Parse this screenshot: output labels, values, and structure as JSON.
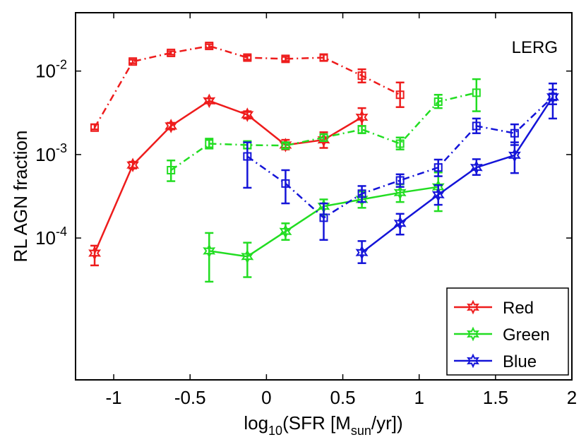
{
  "chart_data": {
    "type": "line",
    "annotation": "LERG",
    "ylabel": "RL AGN fraction",
    "xlabel": {
      "main": "log",
      "sub1": "10",
      "mid": "(SFR [M",
      "sub2": "sun",
      "end": "/yr])"
    },
    "xlim": [
      -1.25,
      2.0
    ],
    "ylim": [
      2e-06,
      0.05
    ],
    "yscale": "log",
    "grid": false,
    "legend_position": "bottom-right",
    "x_ticks": [
      {
        "value": -1,
        "label": "-1"
      },
      {
        "value": -0.5,
        "label": "-0.5"
      },
      {
        "value": 0,
        "label": "0"
      },
      {
        "value": 0.5,
        "label": "0.5"
      },
      {
        "value": 1,
        "label": "1"
      },
      {
        "value": 1.5,
        "label": "1.5"
      },
      {
        "value": 2,
        "label": "2"
      }
    ],
    "y_ticks": [
      {
        "value": 0.0001,
        "base": "10",
        "exp": "-4"
      },
      {
        "value": 0.001,
        "base": "10",
        "exp": "-3"
      },
      {
        "value": 0.01,
        "base": "10",
        "exp": "-2"
      }
    ],
    "series": [
      {
        "name": "Red",
        "color": "#ee1c1c",
        "marker": "star",
        "dash": "solid",
        "in_legend": true,
        "points": [
          {
            "x": -1.125,
            "y": 6.6e-05,
            "lo": 4.7e-05,
            "hi": 8.1e-05
          },
          {
            "x": -0.875,
            "y": 0.00075,
            "lo": 0.00068,
            "hi": 0.00082
          },
          {
            "x": -0.625,
            "y": 0.0022,
            "lo": 0.002,
            "hi": 0.0024
          },
          {
            "x": -0.375,
            "y": 0.0044,
            "lo": 0.0041,
            "hi": 0.0047
          },
          {
            "x": -0.125,
            "y": 0.003,
            "lo": 0.0027,
            "hi": 0.0033
          },
          {
            "x": 0.125,
            "y": 0.0013,
            "lo": 0.00115,
            "hi": 0.0015
          },
          {
            "x": 0.375,
            "y": 0.0015,
            "lo": 0.0012,
            "hi": 0.00185
          },
          {
            "x": 0.625,
            "y": 0.0028,
            "lo": 0.0022,
            "hi": 0.0036
          }
        ]
      },
      {
        "name": "",
        "color": "#ee1c1c",
        "marker": "square",
        "dash": "dashdot",
        "in_legend": false,
        "points": [
          {
            "x": -1.125,
            "y": 0.0021,
            "lo": 0.002,
            "hi": 0.0023
          },
          {
            "x": -0.875,
            "y": 0.013,
            "lo": 0.0124,
            "hi": 0.0137
          },
          {
            "x": -0.625,
            "y": 0.0165,
            "lo": 0.0157,
            "hi": 0.0173
          },
          {
            "x": -0.375,
            "y": 0.02,
            "lo": 0.019,
            "hi": 0.021
          },
          {
            "x": -0.125,
            "y": 0.0145,
            "lo": 0.0137,
            "hi": 0.0153
          },
          {
            "x": 0.125,
            "y": 0.014,
            "lo": 0.0132,
            "hi": 0.0148
          },
          {
            "x": 0.375,
            "y": 0.0145,
            "lo": 0.0133,
            "hi": 0.0157
          },
          {
            "x": 0.625,
            "y": 0.0088,
            "lo": 0.0073,
            "hi": 0.0105
          },
          {
            "x": 0.875,
            "y": 0.0052,
            "lo": 0.0037,
            "hi": 0.0073
          }
        ]
      },
      {
        "name": "Green",
        "color": "#22dd22",
        "marker": "star",
        "dash": "solid",
        "in_legend": true,
        "points": [
          {
            "x": -0.375,
            "y": 7e-05,
            "lo": 3e-05,
            "hi": 0.000115
          },
          {
            "x": -0.125,
            "y": 6e-05,
            "lo": 3.4e-05,
            "hi": 8.8e-05
          },
          {
            "x": 0.125,
            "y": 0.00012,
            "lo": 9.5e-05,
            "hi": 0.00015
          },
          {
            "x": 0.375,
            "y": 0.00024,
            "lo": 0.00019,
            "hi": 0.00029
          },
          {
            "x": 0.625,
            "y": 0.00029,
            "lo": 0.00023,
            "hi": 0.00036
          },
          {
            "x": 0.875,
            "y": 0.00035,
            "lo": 0.00027,
            "hi": 0.00044
          },
          {
            "x": 1.125,
            "y": 0.00041,
            "lo": 0.00021,
            "hi": 0.00061
          }
        ]
      },
      {
        "name": "",
        "color": "#22dd22",
        "marker": "square",
        "dash": "dashdot",
        "in_legend": false,
        "points": [
          {
            "x": -0.625,
            "y": 0.00065,
            "lo": 0.00048,
            "hi": 0.00085
          },
          {
            "x": -0.375,
            "y": 0.00135,
            "lo": 0.00118,
            "hi": 0.00155
          },
          {
            "x": -0.125,
            "y": 0.0013,
            "lo": 0.00118,
            "hi": 0.00145
          },
          {
            "x": 0.125,
            "y": 0.00128,
            "lo": 0.00118,
            "hi": 0.00138
          },
          {
            "x": 0.375,
            "y": 0.0016,
            "lo": 0.00145,
            "hi": 0.00175
          },
          {
            "x": 0.625,
            "y": 0.002,
            "lo": 0.0018,
            "hi": 0.0022
          },
          {
            "x": 0.875,
            "y": 0.00135,
            "lo": 0.00115,
            "hi": 0.0016
          },
          {
            "x": 1.125,
            "y": 0.0043,
            "lo": 0.0036,
            "hi": 0.0052
          },
          {
            "x": 1.375,
            "y": 0.0055,
            "lo": 0.0033,
            "hi": 0.008
          }
        ]
      },
      {
        "name": "Blue",
        "color": "#1414d8",
        "marker": "star",
        "dash": "solid",
        "in_legend": true,
        "points": [
          {
            "x": 0.625,
            "y": 6.7e-05,
            "lo": 5e-05,
            "hi": 9.2e-05
          },
          {
            "x": 0.875,
            "y": 0.00015,
            "lo": 0.00011,
            "hi": 0.000195
          },
          {
            "x": 1.125,
            "y": 0.00033,
            "lo": 0.00025,
            "hi": 0.00043
          },
          {
            "x": 1.375,
            "y": 0.0007,
            "lo": 0.00057,
            "hi": 0.00088
          },
          {
            "x": 1.625,
            "y": 0.00098,
            "lo": 0.0006,
            "hi": 0.0014
          },
          {
            "x": 1.875,
            "y": 0.0049,
            "lo": 0.0027,
            "hi": 0.0071
          }
        ]
      },
      {
        "name": "",
        "color": "#1414d8",
        "marker": "square",
        "dash": "dashdot",
        "in_legend": false,
        "points": [
          {
            "x": -0.125,
            "y": 0.00095,
            "lo": 0.0004,
            "hi": 0.0014
          },
          {
            "x": 0.125,
            "y": 0.00045,
            "lo": 0.00026,
            "hi": 0.00065
          },
          {
            "x": 0.375,
            "y": 0.000175,
            "lo": 9.5e-05,
            "hi": 0.00026
          },
          {
            "x": 0.625,
            "y": 0.00034,
            "lo": 0.00027,
            "hi": 0.00042
          },
          {
            "x": 0.875,
            "y": 0.00049,
            "lo": 0.00041,
            "hi": 0.00058
          },
          {
            "x": 1.125,
            "y": 0.0007,
            "lo": 0.00055,
            "hi": 0.00087
          },
          {
            "x": 1.375,
            "y": 0.0022,
            "lo": 0.0018,
            "hi": 0.0027
          },
          {
            "x": 1.625,
            "y": 0.0018,
            "lo": 0.0013,
            "hi": 0.0023
          },
          {
            "x": 1.875,
            "y": 0.0049,
            "lo": 0.004,
            "hi": 0.006
          }
        ]
      }
    ]
  }
}
